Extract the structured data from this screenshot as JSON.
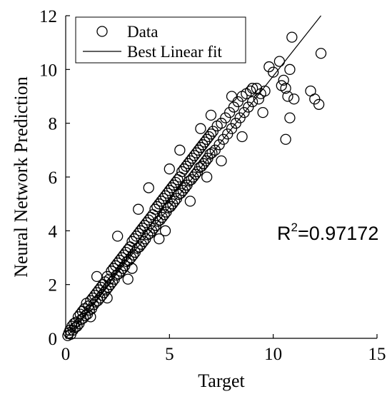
{
  "chart_data": {
    "type": "scatter",
    "xlabel": "Target",
    "ylabel": "Neural Network Prediction",
    "xlim": [
      0,
      15
    ],
    "ylim": [
      0,
      12
    ],
    "xticks": [
      "0",
      "5",
      "10",
      "15"
    ],
    "yticks": [
      "0",
      "2",
      "4",
      "6",
      "8",
      "10",
      "12"
    ],
    "grid": false,
    "legend": {
      "placement": "top-left",
      "entries": [
        {
          "label": "Data",
          "marker": "open-circle"
        },
        {
          "label": "Best Linear fit",
          "marker": "line"
        }
      ]
    },
    "annotation": {
      "base": "R",
      "sup": "2",
      "rest": "=0.97172"
    },
    "fit_line": {
      "x": [
        0,
        12.3
      ],
      "y": [
        0,
        12
      ]
    },
    "series": [
      {
        "name": "Data",
        "points": [
          [
            0.1,
            0.1
          ],
          [
            0.15,
            0.2
          ],
          [
            0.2,
            0.3
          ],
          [
            0.25,
            0.15
          ],
          [
            0.3,
            0.45
          ],
          [
            0.35,
            0.3
          ],
          [
            0.4,
            0.55
          ],
          [
            0.45,
            0.4
          ],
          [
            0.5,
            0.6
          ],
          [
            0.55,
            0.45
          ],
          [
            0.6,
            0.8
          ],
          [
            0.65,
            0.55
          ],
          [
            0.7,
            0.9
          ],
          [
            0.75,
            0.7
          ],
          [
            0.8,
            1.0
          ],
          [
            0.85,
            0.75
          ],
          [
            0.9,
            1.1
          ],
          [
            0.95,
            0.85
          ],
          [
            1.0,
            1.3
          ],
          [
            1.05,
            0.9
          ],
          [
            1.1,
            1.2
          ],
          [
            1.15,
            1.05
          ],
          [
            1.2,
            1.4
          ],
          [
            1.25,
            1.1
          ],
          [
            1.3,
            1.5
          ],
          [
            1.35,
            1.25
          ],
          [
            1.4,
            1.6
          ],
          [
            1.45,
            1.35
          ],
          [
            1.5,
            1.7
          ],
          [
            1.55,
            1.4
          ],
          [
            1.6,
            1.8
          ],
          [
            1.65,
            1.5
          ],
          [
            1.7,
            1.9
          ],
          [
            1.75,
            1.6
          ],
          [
            1.8,
            2.0
          ],
          [
            1.85,
            1.7
          ],
          [
            1.9,
            2.1
          ],
          [
            1.95,
            1.8
          ],
          [
            2.0,
            2.3
          ],
          [
            2.05,
            1.9
          ],
          [
            2.1,
            2.2
          ],
          [
            2.15,
            2.0
          ],
          [
            2.2,
            2.5
          ],
          [
            2.25,
            2.1
          ],
          [
            2.3,
            2.6
          ],
          [
            2.35,
            2.2
          ],
          [
            2.4,
            2.7
          ],
          [
            2.45,
            2.35
          ],
          [
            2.5,
            2.8
          ],
          [
            2.55,
            2.4
          ],
          [
            2.6,
            2.9
          ],
          [
            2.65,
            2.5
          ],
          [
            2.7,
            3.0
          ],
          [
            2.75,
            2.6
          ],
          [
            2.8,
            3.1
          ],
          [
            2.85,
            2.7
          ],
          [
            2.9,
            3.2
          ],
          [
            2.95,
            2.85
          ],
          [
            3.0,
            3.3
          ],
          [
            3.05,
            2.9
          ],
          [
            3.1,
            3.4
          ],
          [
            3.15,
            3.0
          ],
          [
            3.2,
            3.6
          ],
          [
            3.25,
            3.1
          ],
          [
            3.3,
            3.7
          ],
          [
            3.35,
            3.2
          ],
          [
            3.4,
            3.8
          ],
          [
            3.45,
            3.35
          ],
          [
            3.5,
            3.9
          ],
          [
            3.55,
            3.4
          ],
          [
            3.6,
            4.0
          ],
          [
            3.65,
            3.5
          ],
          [
            3.7,
            4.1
          ],
          [
            3.75,
            3.6
          ],
          [
            3.8,
            4.2
          ],
          [
            3.85,
            3.7
          ],
          [
            3.9,
            4.3
          ],
          [
            3.95,
            3.85
          ],
          [
            4.0,
            4.4
          ],
          [
            4.05,
            3.9
          ],
          [
            4.1,
            4.5
          ],
          [
            4.15,
            4.0
          ],
          [
            4.2,
            4.6
          ],
          [
            4.25,
            4.1
          ],
          [
            4.3,
            4.8
          ],
          [
            4.35,
            4.2
          ],
          [
            4.4,
            4.9
          ],
          [
            4.45,
            4.35
          ],
          [
            4.5,
            5.0
          ],
          [
            4.55,
            4.4
          ],
          [
            4.6,
            5.1
          ],
          [
            4.65,
            4.5
          ],
          [
            4.7,
            5.2
          ],
          [
            4.75,
            4.6
          ],
          [
            4.8,
            5.3
          ],
          [
            4.85,
            4.7
          ],
          [
            4.9,
            5.4
          ],
          [
            4.95,
            4.85
          ],
          [
            5.0,
            5.5
          ],
          [
            5.05,
            4.9
          ],
          [
            5.1,
            5.6
          ],
          [
            5.15,
            5.0
          ],
          [
            5.2,
            5.7
          ],
          [
            5.25,
            5.1
          ],
          [
            5.3,
            5.8
          ],
          [
            5.35,
            5.2
          ],
          [
            5.4,
            5.9
          ],
          [
            5.45,
            5.35
          ],
          [
            5.5,
            6.0
          ],
          [
            5.55,
            5.4
          ],
          [
            5.6,
            6.2
          ],
          [
            5.65,
            5.5
          ],
          [
            5.7,
            6.3
          ],
          [
            5.75,
            5.6
          ],
          [
            5.8,
            6.4
          ],
          [
            5.85,
            5.7
          ],
          [
            5.9,
            6.5
          ],
          [
            5.95,
            5.85
          ],
          [
            6.0,
            6.6
          ],
          [
            6.05,
            5.9
          ],
          [
            6.1,
            6.7
          ],
          [
            6.15,
            6.0
          ],
          [
            6.2,
            6.8
          ],
          [
            6.25,
            6.1
          ],
          [
            6.3,
            6.9
          ],
          [
            6.35,
            6.2
          ],
          [
            6.4,
            7.0
          ],
          [
            6.45,
            6.35
          ],
          [
            6.5,
            7.1
          ],
          [
            6.55,
            6.4
          ],
          [
            6.6,
            7.2
          ],
          [
            6.65,
            6.5
          ],
          [
            6.7,
            7.3
          ],
          [
            6.75,
            6.6
          ],
          [
            6.8,
            7.4
          ],
          [
            6.85,
            6.7
          ],
          [
            6.9,
            7.5
          ],
          [
            6.95,
            6.85
          ],
          [
            7.0,
            7.6
          ],
          [
            7.05,
            6.9
          ],
          [
            7.1,
            7.7
          ],
          [
            7.2,
            7.0
          ],
          [
            7.3,
            7.9
          ],
          [
            7.4,
            7.2
          ],
          [
            7.5,
            8.0
          ],
          [
            7.6,
            7.4
          ],
          [
            7.7,
            8.2
          ],
          [
            7.8,
            7.6
          ],
          [
            7.9,
            8.4
          ],
          [
            8.0,
            7.8
          ],
          [
            8.1,
            8.6
          ],
          [
            8.2,
            8.0
          ],
          [
            8.3,
            8.8
          ],
          [
            8.4,
            8.2
          ],
          [
            8.5,
            9.0
          ],
          [
            8.6,
            8.4
          ],
          [
            8.7,
            9.1
          ],
          [
            8.8,
            8.6
          ],
          [
            8.9,
            9.2
          ],
          [
            9.0,
            8.8
          ],
          [
            9.2,
            9.3
          ],
          [
            9.4,
            9.1
          ],
          [
            9.6,
            9.2
          ],
          [
            9.8,
            10.1
          ],
          [
            9.5,
            8.4
          ],
          [
            9.3,
            8.9
          ],
          [
            10.0,
            9.9
          ],
          [
            10.3,
            10.3
          ],
          [
            10.5,
            9.6
          ],
          [
            10.6,
            9.3
          ],
          [
            10.7,
            9.0
          ],
          [
            10.8,
            10.0
          ],
          [
            10.9,
            11.2
          ],
          [
            11.0,
            8.9
          ],
          [
            10.8,
            8.2
          ],
          [
            10.6,
            7.4
          ],
          [
            10.4,
            9.4
          ],
          [
            11.8,
            9.2
          ],
          [
            12.0,
            8.9
          ],
          [
            12.2,
            8.7
          ],
          [
            12.3,
            10.6
          ],
          [
            2.5,
            3.8
          ],
          [
            3.0,
            2.2
          ],
          [
            4.0,
            5.6
          ],
          [
            4.8,
            4.0
          ],
          [
            5.5,
            7.0
          ],
          [
            6.0,
            5.1
          ],
          [
            7.0,
            8.3
          ],
          [
            7.5,
            6.6
          ],
          [
            8.0,
            9.0
          ],
          [
            8.5,
            7.5
          ],
          [
            1.5,
            2.3
          ],
          [
            2.0,
            1.5
          ],
          [
            3.5,
            4.8
          ],
          [
            4.5,
            3.7
          ],
          [
            6.5,
            7.8
          ],
          [
            6.8,
            6.0
          ],
          [
            9.0,
            9.3
          ],
          [
            5.0,
            6.3
          ],
          [
            3.2,
            2.6
          ],
          [
            1.2,
            0.8
          ]
        ]
      }
    ]
  }
}
